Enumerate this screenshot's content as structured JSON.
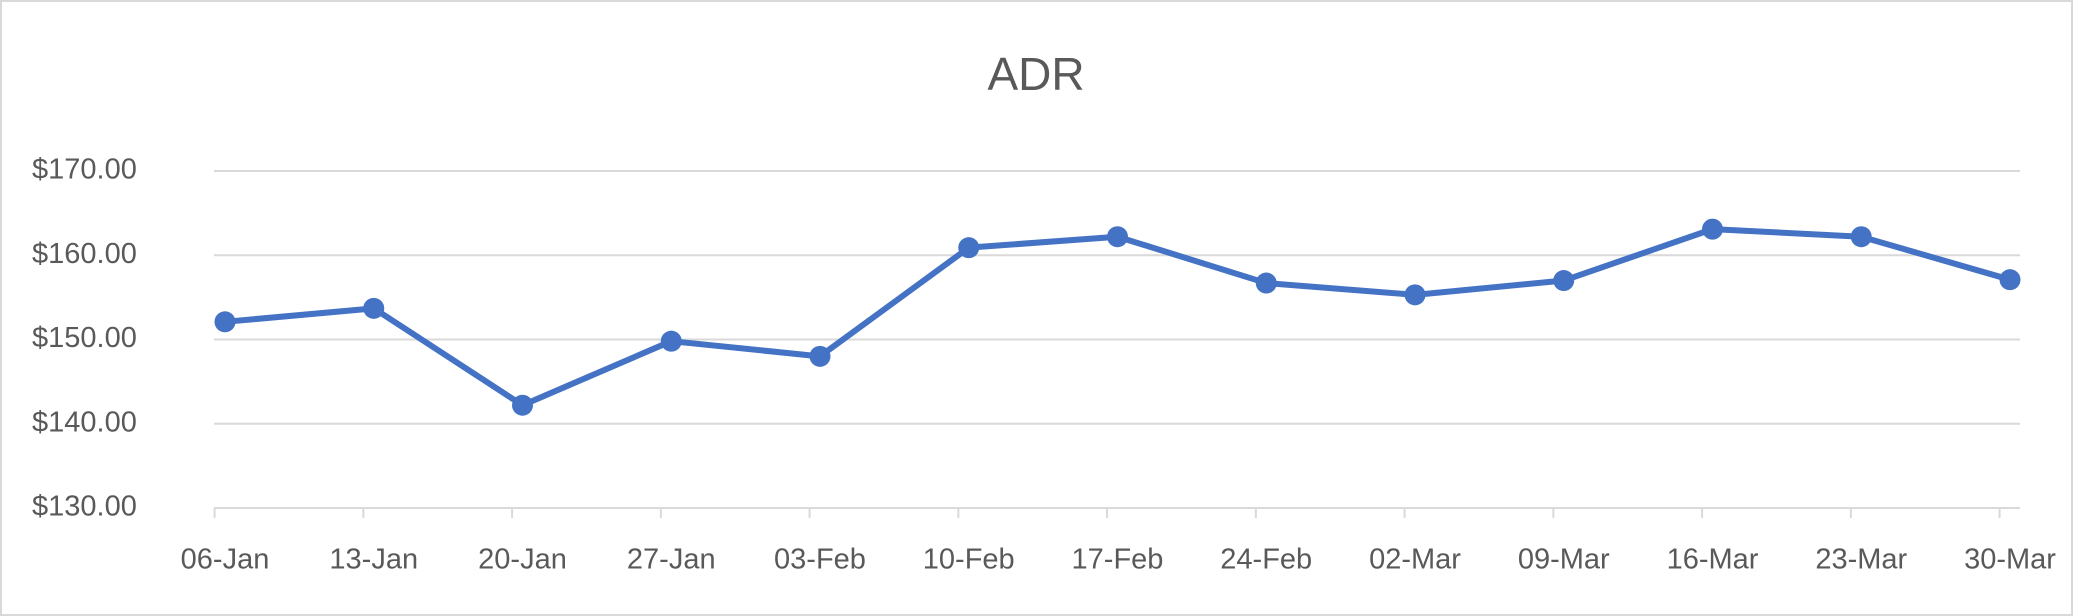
{
  "chart_data": {
    "type": "line",
    "title": "ADR",
    "categories": [
      "06-Jan",
      "13-Jan",
      "20-Jan",
      "27-Jan",
      "03-Feb",
      "10-Feb",
      "17-Feb",
      "24-Feb",
      "02-Mar",
      "09-Mar",
      "16-Mar",
      "23-Mar",
      "30-Mar"
    ],
    "values": [
      152.1,
      153.7,
      142.2,
      149.8,
      148.0,
      160.9,
      162.2,
      156.7,
      155.3,
      157.0,
      163.1,
      162.2,
      157.1
    ],
    "color": "#4472c4",
    "ylim": [
      130,
      170
    ],
    "yticks": [
      {
        "value": 130,
        "label": "$130.00"
      },
      {
        "value": 140,
        "label": "$140.00"
      },
      {
        "value": 150,
        "label": "$150.00"
      },
      {
        "value": 160,
        "label": "$160.00"
      },
      {
        "value": 170,
        "label": "$170.00"
      }
    ],
    "grid": true
  }
}
